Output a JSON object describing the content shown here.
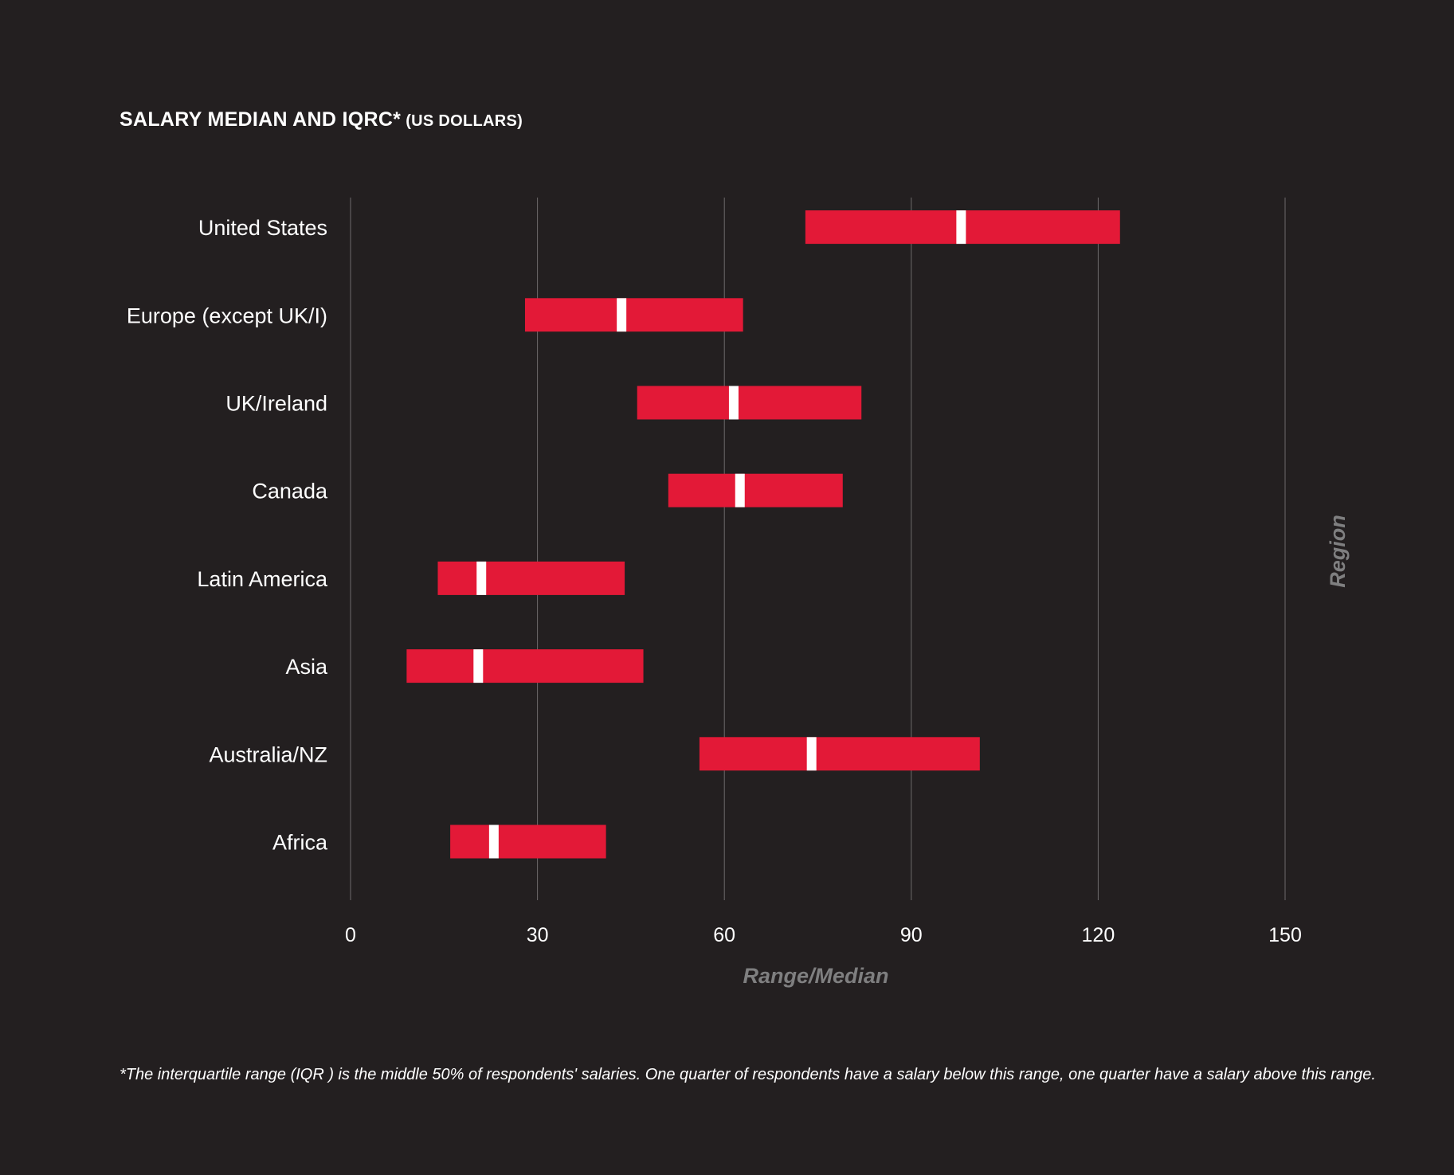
{
  "header": {
    "title": "SALARY MEDIAN AND IQRC*",
    "subtitle": "(US DOLLARS)"
  },
  "footnote": "*The interquartile range (IQR ) is the middle 50% of respondents' salaries.  One quarter of respondents have a salary below this range, one quarter have a salary above this range.",
  "chart_data": {
    "type": "bar",
    "orientation": "horizontal",
    "xlabel": "Range/Median",
    "ylabel": "Region",
    "xlim": [
      0,
      150
    ],
    "xticks": [
      0,
      30,
      60,
      90,
      120,
      150
    ],
    "grid": true,
    "categories": [
      "United States",
      "Europe (except UK/I)",
      "UK/Ireland",
      "Canada",
      "Latin America",
      "Asia",
      "Australia/NZ",
      "Africa"
    ],
    "series": [
      {
        "name": "IQR low",
        "values": [
          73,
          28,
          46,
          51,
          14,
          9,
          56,
          16
        ]
      },
      {
        "name": "Median",
        "values": [
          98,
          43.5,
          61.5,
          62.5,
          21,
          20.5,
          74,
          23
        ]
      },
      {
        "name": "IQR high",
        "values": [
          123.5,
          63,
          82,
          79,
          44,
          47,
          101,
          41
        ]
      }
    ],
    "colors": {
      "bar": "#e31937",
      "median_marker": "#ffffff",
      "background": "#231f20",
      "grid": "#6d6a6b",
      "axis_title": "#7f7f80"
    }
  }
}
